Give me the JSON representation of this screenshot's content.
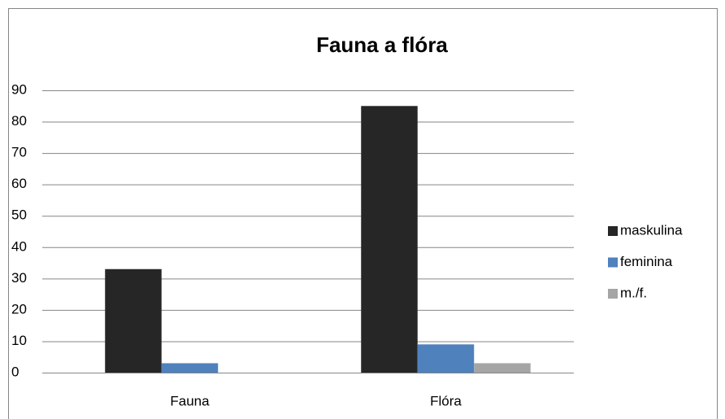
{
  "chart_data": {
    "type": "bar",
    "title": "Fauna a flóra",
    "categories": [
      "Fauna",
      "Flóra"
    ],
    "series": [
      {
        "name": "maskulina",
        "color": "#262626",
        "values": [
          33,
          85
        ]
      },
      {
        "name": "feminina",
        "color": "#4f81bd",
        "values": [
          3,
          9
        ]
      },
      {
        "name": "m./f.",
        "color": "#a5a5a5",
        "values": [
          0,
          3
        ]
      }
    ],
    "ylim": [
      0,
      90
    ],
    "yticks": [
      0,
      10,
      20,
      30,
      40,
      50,
      60,
      70,
      80,
      90
    ],
    "grid": true,
    "legend": "right"
  }
}
